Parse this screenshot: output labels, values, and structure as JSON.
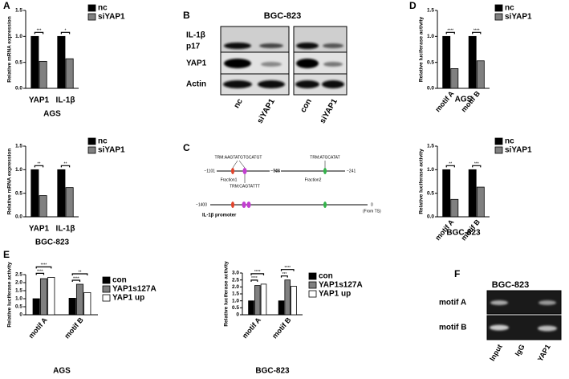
{
  "panel_labels": [
    "A",
    "B",
    "C",
    "D",
    "E",
    "F"
  ],
  "chart_data": [
    {
      "type": "bar",
      "title": "AGS",
      "ylabel": "Relative mRNA expression",
      "categories": [
        "YAP1",
        "IL-1β"
      ],
      "series": [
        {
          "name": "nc",
          "color": "#000000",
          "values": [
            1.0,
            1.0
          ]
        },
        {
          "name": "siYAP1",
          "color": "#808080",
          "values": [
            0.52,
            0.57
          ]
        }
      ],
      "ylim": [
        0,
        1.5
      ],
      "yticks": [
        {
          "value": 0,
          "label": "0.0"
        },
        0.5,
        {
          "value": 1,
          "label": "1.0"
        },
        1.5
      ],
      "significance": [
        [
          "***"
        ],
        [
          "*"
        ]
      ]
    },
    {
      "type": "bar",
      "title": "BGC-823",
      "ylabel": "Relative mRNA expression",
      "categories": [
        "YAP1",
        "IL-1β"
      ],
      "series": [
        {
          "name": "nc",
          "color": "#000000",
          "values": [
            1.0,
            1.0
          ]
        },
        {
          "name": "siYAP1",
          "color": "#808080",
          "values": [
            0.45,
            0.62
          ]
        }
      ],
      "ylim": [
        0,
        1.5
      ],
      "yticks": [
        {
          "value": 0,
          "label": "0.0"
        },
        0.5,
        {
          "value": 1,
          "label": "1.0"
        },
        1.5
      ],
      "significance": [
        [
          "**"
        ],
        [
          "**"
        ]
      ]
    },
    {
      "type": "bar",
      "title": "AGS",
      "ylabel": "Relative luciferase activity",
      "categories": [
        "motif A",
        "motif B"
      ],
      "series": [
        {
          "name": "nc",
          "color": "#000000",
          "values": [
            1.0,
            1.0
          ]
        },
        {
          "name": "siYAP1",
          "color": "#808080",
          "values": [
            0.38,
            0.53
          ]
        }
      ],
      "ylim": [
        0,
        1.5
      ],
      "yticks": [
        {
          "value": 0,
          "label": "0.0"
        },
        0.5,
        {
          "value": 1,
          "label": "1.0"
        },
        1.5
      ],
      "significance": [
        [
          "****"
        ],
        [
          "****"
        ]
      ]
    },
    {
      "type": "bar",
      "title": "BGC-823",
      "ylabel": "Relative luciferase activity",
      "categories": [
        "motif A",
        "motif B"
      ],
      "series": [
        {
          "name": "nc",
          "color": "#000000",
          "values": [
            1.0,
            1.0
          ]
        },
        {
          "name": "siYAP1",
          "color": "#808080",
          "values": [
            0.37,
            0.63
          ]
        }
      ],
      "ylim": [
        0,
        1.5
      ],
      "yticks": [
        {
          "value": 0,
          "label": "0.0"
        },
        0.5,
        {
          "value": 1,
          "label": "1.0"
        },
        1.5
      ],
      "significance": [
        [
          "**"
        ],
        [
          "***"
        ]
      ]
    },
    {
      "type": "bar",
      "title": "AGS",
      "ylabel": "Relative luciferase activity",
      "categories": [
        "motif A",
        "motif B"
      ],
      "series": [
        {
          "name": "con",
          "color": "#000000",
          "values": [
            1.0,
            1.03
          ]
        },
        {
          "name": "YAP1s127A",
          "color": "#808080",
          "values": [
            2.25,
            1.9
          ]
        },
        {
          "name": "YAP1 up",
          "color": "#ffffff",
          "values": [
            2.33,
            1.38
          ]
        }
      ],
      "ylim": [
        0,
        2.5
      ],
      "yticks": [
        {
          "value": 0,
          "label": "0"
        },
        0.5,
        {
          "value": 1,
          "label": "1.0"
        },
        1.5,
        {
          "value": 2,
          "label": "2.0"
        },
        2.5
      ],
      "significance": [
        [
          "****",
          "****"
        ],
        [
          "****",
          "**"
        ]
      ]
    },
    {
      "type": "bar",
      "title": "BGC-823",
      "ylabel": "Relative luciferase activity",
      "categories": [
        "motif A",
        "motif B"
      ],
      "series": [
        {
          "name": "con",
          "color": "#000000",
          "values": [
            1.0,
            1.0
          ]
        },
        {
          "name": "YAP1s127A",
          "color": "#808080",
          "values": [
            2.1,
            2.5
          ]
        },
        {
          "name": "YAP1 up",
          "color": "#ffffff",
          "values": [
            2.2,
            2.05
          ]
        }
      ],
      "ylim": [
        0,
        3
      ],
      "yticks": [
        {
          "value": 0,
          "label": "0"
        },
        0.5,
        {
          "value": 1,
          "label": "1.0"
        },
        1.5,
        {
          "value": 2,
          "label": "2.0"
        },
        2.5,
        {
          "value": 3,
          "label": "3.0"
        }
      ],
      "significance": [
        [
          "****",
          "****"
        ],
        [
          "***",
          "****"
        ]
      ]
    }
  ],
  "blot": {
    "title": "BGC-823",
    "rows": [
      "IL-1β",
      "p17",
      "YAP1",
      "Actin"
    ],
    "lanes": [
      "nc",
      "siYAP1",
      "con",
      "siYAP1"
    ]
  },
  "diagram": {
    "sites": [
      "TRM:AAGTATGTGCATGT",
      "TRM:ATGCATAT",
      "TRM:CAGTATTT"
    ],
    "positions": [
      "−1101",
      "−745",
      "−504",
      "−241"
    ],
    "fractions": [
      "Fraction1",
      "Fraction2"
    ],
    "start": "−1400",
    "end": "0",
    "note": "(From TS)",
    "label": "IL-1β promoter"
  },
  "gel": {
    "title": "BGC-823",
    "rows": [
      "motif A",
      "motif B"
    ],
    "lanes": [
      "Input",
      "IgG",
      "YAP1"
    ]
  }
}
